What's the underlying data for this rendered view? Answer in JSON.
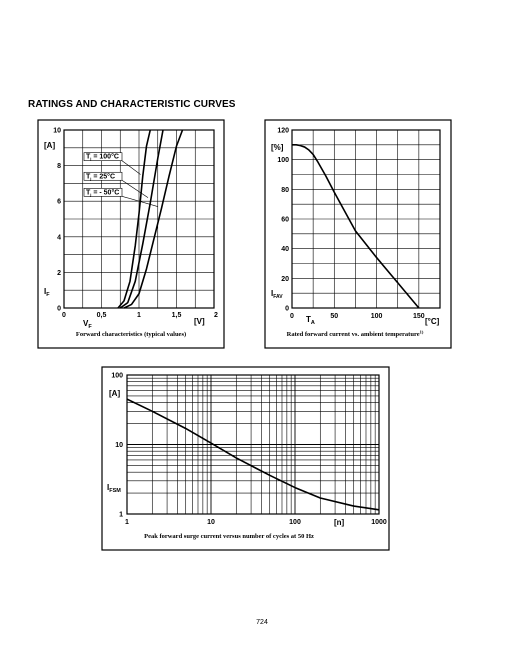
{
  "heading": "RATINGS AND CHARACTERISTIC CURVES",
  "page_number": "724",
  "chart_data": [
    {
      "type": "line",
      "caption": "Forward characteristics (typical values)",
      "xlabel": "V_F",
      "xlabel_main": "V",
      "xlabel_sub": "F",
      "ylabel": "I_F",
      "ylabel_main": "I",
      "ylabel_sub": "F",
      "x_unit": "[V]",
      "y_unit": "[A]",
      "xlim": [
        0,
        2
      ],
      "ylim": [
        0,
        10
      ],
      "x_tick_values": [
        0,
        0.5,
        1,
        1.5
      ],
      "x_tick_labels": [
        "0",
        "0,5",
        "1",
        "1,5"
      ],
      "x_end_label": "2",
      "y_ticks": [
        "0",
        "2",
        "4",
        "6",
        "8",
        "10"
      ],
      "legend": [
        {
          "main": "T",
          "sub": "j",
          "text": "= 100°C"
        },
        {
          "main": "T",
          "sub": "j",
          "text": "= 25°C"
        },
        {
          "main": "T",
          "sub": "j",
          "text": "= - 50°C"
        }
      ],
      "series": [
        {
          "x": [
            0.72,
            0.8,
            0.88,
            0.95,
            1.0,
            1.05,
            1.1,
            1.15
          ],
          "y": [
            0,
            0.4,
            1.5,
            3.5,
            5.3,
            7.4,
            9.1,
            10
          ]
        },
        {
          "x": [
            0.75,
            0.85,
            0.95,
            1.05,
            1.15,
            1.25,
            1.32
          ],
          "y": [
            0,
            0.3,
            1.5,
            3.6,
            5.9,
            8.4,
            10
          ]
        },
        {
          "x": [
            0.8,
            0.9,
            1.0,
            1.1,
            1.2,
            1.3,
            1.4,
            1.5,
            1.58
          ],
          "y": [
            0,
            0.2,
            0.8,
            2.2,
            3.9,
            5.6,
            7.4,
            9.1,
            10
          ]
        }
      ]
    },
    {
      "type": "line",
      "caption": "Rated forward current vs. ambient temperature",
      "caption_sup": "1)",
      "xlabel": "T_A",
      "xlabel_main": "T",
      "xlabel_sub": "A",
      "ylabel": "I_FAV",
      "ylabel_main": "I",
      "ylabel_sub": "FAV",
      "x_unit": "[°C]",
      "y_unit": "[%]",
      "xlim": [
        0,
        175
      ],
      "ylim": [
        0,
        120
      ],
      "x_ticks": [
        0,
        50,
        100,
        150
      ],
      "y_ticks": [
        0,
        20,
        40,
        60,
        80,
        100,
        120
      ],
      "series": [
        {
          "x": [
            0,
            5,
            10,
            15,
            20,
            25,
            30,
            40,
            50,
            75,
            100,
            125,
            150
          ],
          "y": [
            110,
            110,
            109.5,
            108.5,
            106.5,
            103.5,
            99,
            89,
            78,
            52,
            34,
            17,
            0
          ]
        }
      ]
    },
    {
      "type": "line",
      "caption": "Peak forward surge current versus number of cycles at 50 Hz",
      "xlabel": "[n]",
      "ylabel": "I_FSM",
      "ylabel_main": "I",
      "ylabel_sub": "FSM",
      "y_unit": "[A]",
      "x_scale": "log",
      "y_scale": "log",
      "xlim": [
        1,
        1000
      ],
      "ylim": [
        1,
        100
      ],
      "x_ticks": [
        "1",
        "10",
        "100",
        "1000"
      ],
      "y_ticks": [
        "1",
        "10",
        "100"
      ],
      "series": [
        {
          "x": [
            1,
            2,
            5,
            10,
            20,
            50,
            100,
            200,
            500,
            1000
          ],
          "y": [
            45,
            30,
            17,
            10.5,
            6.4,
            3.6,
            2.4,
            1.7,
            1.3,
            1.15
          ]
        }
      ]
    }
  ]
}
